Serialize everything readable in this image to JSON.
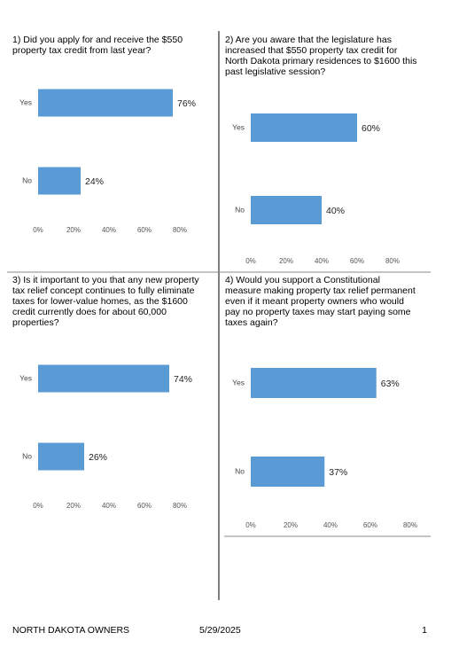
{
  "chart_data": [
    {
      "type": "barh",
      "title": [
        "1) Did you apply for and receive the $550",
        "property tax credit from last year?"
      ],
      "categories": [
        "Yes",
        "No"
      ],
      "values": [
        76,
        24
      ],
      "value_labels": [
        "76%",
        "24%"
      ],
      "color": "#5b9bd5",
      "xlim": [
        0,
        80
      ],
      "xticks": [
        {
          "value": 0,
          "label": "0%"
        },
        {
          "value": 20,
          "label": "20%"
        },
        {
          "value": 40,
          "label": "40%"
        },
        {
          "value": 60,
          "label": "60%"
        },
        {
          "value": 80,
          "label": "80%"
        }
      ]
    },
    {
      "type": "barh",
      "title": [
        "2) Are you aware that the legislature has",
        "increased that $550 property tax credit for",
        "North Dakota primary residences to $1600 this",
        "past legislative session?"
      ],
      "categories": [
        "Yes",
        "No"
      ],
      "values": [
        60,
        40
      ],
      "value_labels": [
        "60%",
        "40%"
      ],
      "color": "#5b9bd5",
      "xlim": [
        0,
        80
      ],
      "xticks": [
        {
          "value": 0,
          "label": "0%"
        },
        {
          "value": 20,
          "label": "20%"
        },
        {
          "value": 40,
          "label": "40%"
        },
        {
          "value": 60,
          "label": "60%"
        },
        {
          "value": 80,
          "label": "80%"
        }
      ]
    },
    {
      "type": "barh",
      "title": [
        "3) Is it important to you that any new property",
        "tax relief concept continues to fully eliminate",
        "taxes for lower-value homes, as the $1600",
        "credit currently does for about 60,000",
        "properties?"
      ],
      "categories": [
        "Yes",
        "No"
      ],
      "values": [
        74,
        26
      ],
      "value_labels": [
        "74%",
        "26%"
      ],
      "color": "#5b9bd5",
      "xlim": [
        0,
        80
      ],
      "xticks": [
        {
          "value": 0,
          "label": "0%"
        },
        {
          "value": 20,
          "label": "20%"
        },
        {
          "value": 40,
          "label": "40%"
        },
        {
          "value": 60,
          "label": "60%"
        },
        {
          "value": 80,
          "label": "80%"
        }
      ]
    },
    {
      "type": "barh",
      "title": [
        "4) Would you support a Constitutional",
        "measure making property tax relief permanent",
        "even if it meant property owners who would",
        "pay no property taxes may start paying some",
        "taxes again?"
      ],
      "categories": [
        "Yes",
        "No"
      ],
      "values": [
        63,
        37
      ],
      "value_labels": [
        "63%",
        "37%"
      ],
      "color": "#5b9bd5",
      "xlim": [
        0,
        80
      ],
      "xticks": [
        {
          "value": 0,
          "label": "0%"
        },
        {
          "value": 20,
          "label": "20%"
        },
        {
          "value": 40,
          "label": "40%"
        },
        {
          "value": 60,
          "label": "60%"
        },
        {
          "value": 80,
          "label": "80%"
        }
      ]
    }
  ],
  "footer": {
    "left": "NORTH DAKOTA OWNERS",
    "date": "5/29/2025",
    "page": "1"
  }
}
